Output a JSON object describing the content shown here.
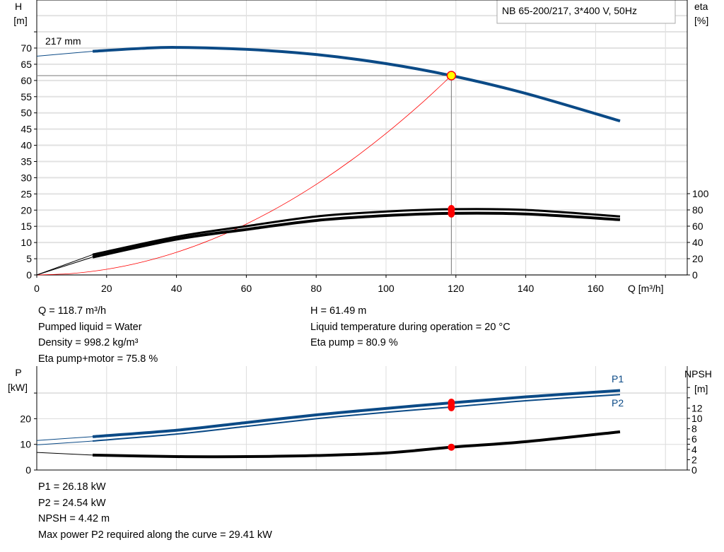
{
  "title": "NB 65-200/217, 3*400 V, 50Hz",
  "chart_data": [
    {
      "type": "line",
      "xlabel": "Q [m³/h]",
      "ylabel": "H\n[m]",
      "ylabel_lines": [
        "H",
        "[m]"
      ],
      "y2label_lines": [
        "eta",
        "[%]"
      ],
      "xlim": [
        0,
        180
      ],
      "ylim": [
        0,
        85
      ],
      "y2lim": [
        0,
        100
      ],
      "xticks": [
        0,
        20,
        40,
        60,
        80,
        100,
        120,
        140,
        160
      ],
      "yticks": [
        0,
        5,
        10,
        15,
        20,
        25,
        30,
        35,
        40,
        45,
        50,
        55,
        60,
        65,
        70
      ],
      "y2ticks": [
        0,
        20,
        40,
        60,
        80,
        100
      ],
      "grid": true,
      "curve_label": "217 mm",
      "series": [
        {
          "key": "H",
          "axis": "left",
          "color": "#0b4a86",
          "x": [
            0,
            16,
            30,
            40,
            60,
            80,
            100,
            118.7,
            140,
            167
          ],
          "y": [
            67.5,
            69,
            69.9,
            70.2,
            69.6,
            68,
            65.2,
            61.49,
            56,
            47.5
          ]
        },
        {
          "key": "eta_pump",
          "axis": "right",
          "color": "#000000",
          "x": [
            0,
            16,
            40,
            60,
            80,
            100,
            118.7,
            140,
            167
          ],
          "y": [
            0,
            25,
            47,
            60,
            72,
            78,
            80.9,
            80,
            72
          ]
        },
        {
          "key": "eta_pump_motor",
          "axis": "right",
          "color": "#000000",
          "x": [
            0,
            16,
            40,
            60,
            80,
            100,
            118.7,
            140,
            167
          ],
          "y": [
            0,
            22,
            44,
            56,
            67,
            73,
            75.8,
            75,
            68
          ]
        },
        {
          "key": "system_curve",
          "axis": "left",
          "color": "#ff0000",
          "x": [
            0,
            10,
            20,
            30,
            40,
            50,
            60,
            70,
            80,
            90,
            100,
            110,
            118.7
          ],
          "y": [
            0,
            0.44,
            1.75,
            3.93,
            6.98,
            10.91,
            15.71,
            21.38,
            27.93,
            35.35,
            43.64,
            52.8,
            61.49
          ]
        }
      ],
      "operating_point": {
        "Q": 118.7,
        "H": 61.49,
        "eta_pump": 80.9,
        "eta_pump_motor": 75.8
      }
    },
    {
      "type": "line",
      "ylabel_lines": [
        "P",
        "[kW]"
      ],
      "y2label_lines": [
        "NPSH",
        "[m]"
      ],
      "xlim": [
        0,
        180
      ],
      "ylim": [
        0,
        30
      ],
      "y2lim": [
        0,
        10
      ],
      "yticks": [
        0,
        10,
        20
      ],
      "y2ticks": [
        0,
        2,
        4,
        6,
        8,
        10,
        12
      ],
      "grid": true,
      "series": [
        {
          "name": "P1",
          "axis": "left",
          "color": "#0b4a86",
          "x": [
            0,
            16,
            40,
            60,
            80,
            100,
            118.7,
            140,
            167
          ],
          "y": [
            11.5,
            13,
            15.5,
            18.5,
            21.5,
            24,
            26.18,
            28.5,
            31
          ]
        },
        {
          "name": "P2",
          "axis": "left",
          "color": "#0b4a86",
          "x": [
            0,
            16,
            40,
            60,
            80,
            100,
            118.7,
            140,
            167
          ],
          "y": [
            9.8,
            11.3,
            14,
            17,
            20,
            22.5,
            24.54,
            27,
            29.41
          ]
        },
        {
          "key": "NPSH",
          "axis": "right",
          "color": "#000000",
          "x": [
            0,
            16,
            40,
            60,
            80,
            100,
            118.7,
            140,
            167
          ],
          "y": [
            3.4,
            2.9,
            2.6,
            2.6,
            2.8,
            3.3,
            4.42,
            5.5,
            7.4
          ]
        }
      ]
    }
  ],
  "results_top": {
    "left": [
      "Q = 118.7 m³/h",
      "Pumped liquid = Water",
      "Density = 998.2 kg/m³",
      "Eta pump+motor = 75.8 %"
    ],
    "right": [
      "H = 61.49 m",
      "Liquid temperature during operation = 20 °C",
      "Eta pump = 80.9 %"
    ]
  },
  "results_bottom": [
    "P1 = 26.18 kW",
    "P2 = 24.54 kW",
    "NPSH = 4.42 m",
    "Max power P2 required along the curve = 29.41 kW"
  ]
}
